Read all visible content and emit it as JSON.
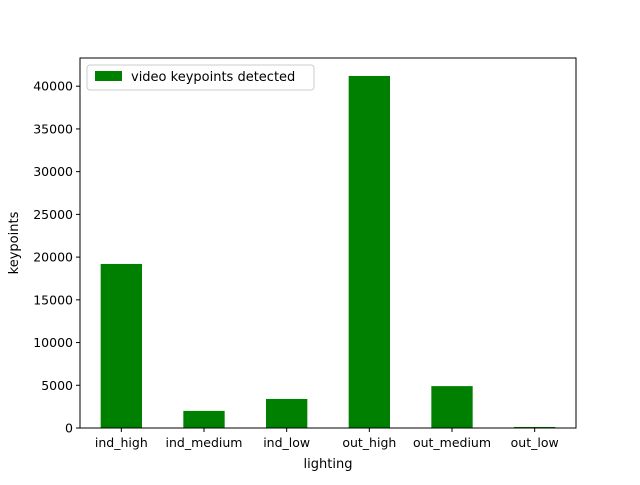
{
  "chart_data": {
    "type": "bar",
    "categories": [
      "ind_high",
      "ind_medium",
      "ind_low",
      "out_high",
      "out_medium",
      "out_low"
    ],
    "series": [
      {
        "name": "video keypoints detected",
        "values": [
          19200,
          2000,
          3400,
          41200,
          4900,
          120
        ],
        "color": "#008000"
      }
    ],
    "xlabel": "lighting",
    "ylabel": "keypoints",
    "ylim": [
      0,
      43300
    ],
    "yticks": [
      0,
      5000,
      10000,
      15000,
      20000,
      25000,
      30000,
      35000,
      40000
    ],
    "legend": {
      "placement": "top-left"
    },
    "grid": false
  }
}
